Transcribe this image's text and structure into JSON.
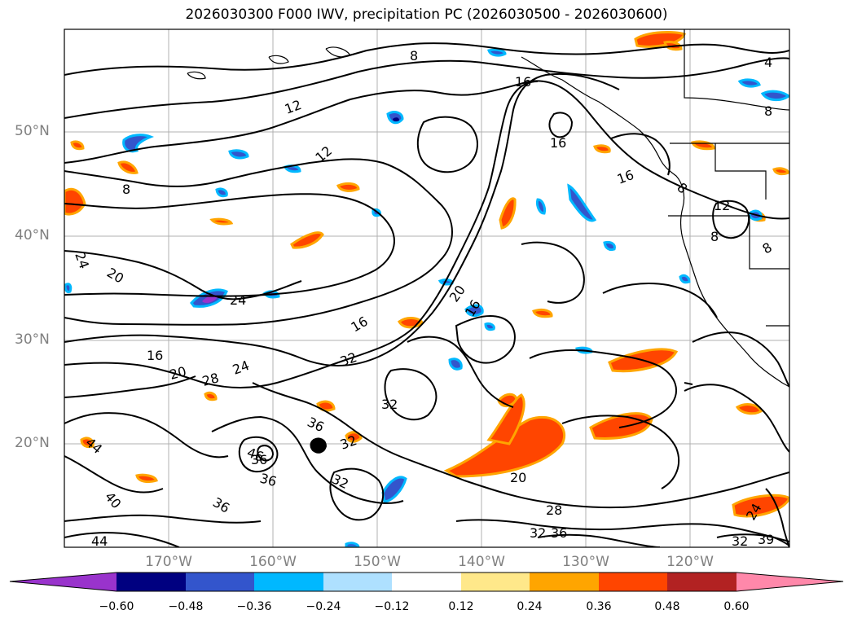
{
  "title": "2026030300 F000 IWV, precipitation PC (2026030500 - 2026030600)",
  "lat_labels": [
    "50°N",
    "40°N",
    "30°N",
    "20°N"
  ],
  "lon_labels": [
    "170°W",
    "160°W",
    "150°W",
    "140°W",
    "130°W",
    "120°W"
  ],
  "colorbar": {
    "ticks": [
      "−0.60",
      "−0.48",
      "−0.36",
      "−0.24",
      "−0.12",
      "0.12",
      "0.24",
      "0.36",
      "0.48",
      "0.60"
    ],
    "colors": [
      "#9933cc",
      "#000080",
      "#3355cc",
      "#00b8ff",
      "#aee0ff",
      "#ffffff",
      "#ffe88a",
      "#ffa500",
      "#ff4500",
      "#b22222",
      "#ff88aa"
    ]
  },
  "contour_labels": [
    "8",
    "16",
    "12",
    "12",
    "8",
    "4",
    "8",
    "16",
    "16",
    "8",
    "12",
    "8",
    "8",
    "24",
    "20",
    "24",
    "20",
    "16",
    "16",
    "32",
    "16",
    "20",
    "28",
    "24",
    "32",
    "36",
    "44",
    "40",
    "46",
    "36",
    "36",
    "32",
    "32",
    "20",
    "28",
    "32",
    "36",
    "36",
    "32",
    "39",
    "44",
    "24"
  ]
}
